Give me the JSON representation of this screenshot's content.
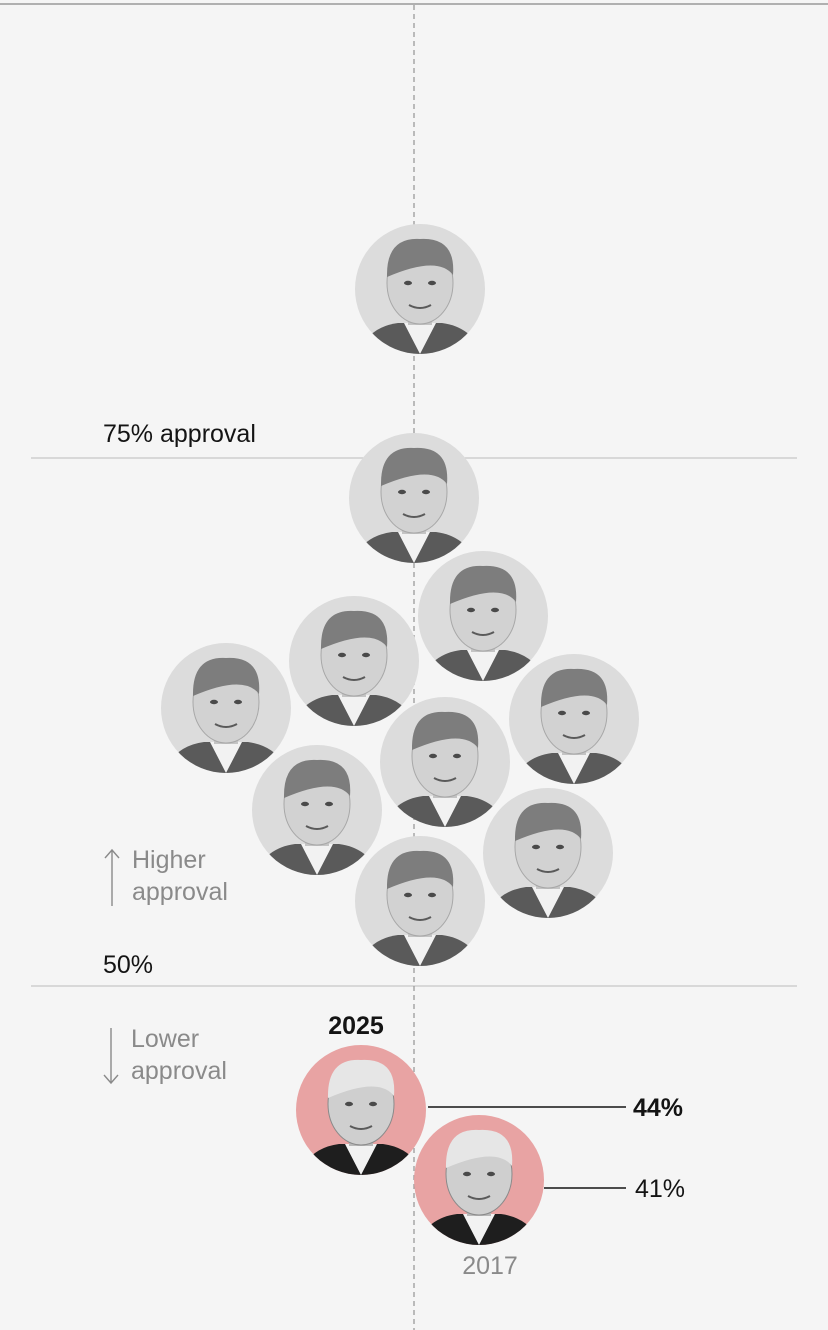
{
  "chart_data": {
    "type": "scatter",
    "description_free": true,
    "y_axis": {
      "gridlines": [
        {
          "value": 75,
          "label": "75% approval"
        },
        {
          "value": 50,
          "label": "50%"
        }
      ],
      "higher_label": [
        "Higher",
        "approval"
      ],
      "lower_label": [
        "Lower",
        "approval"
      ]
    },
    "points": [
      {
        "id": "kennedy",
        "highlight": false
      },
      {
        "id": "eisenhower",
        "highlight": false
      },
      {
        "id": "reagan",
        "highlight": false
      },
      {
        "id": "obama",
        "highlight": false
      },
      {
        "id": "carter",
        "highlight": false
      },
      {
        "id": "bush-jr",
        "highlight": false
      },
      {
        "id": "nixon",
        "highlight": false
      },
      {
        "id": "bush-sr",
        "highlight": false
      },
      {
        "id": "biden",
        "highlight": false
      },
      {
        "id": "clinton",
        "highlight": false
      },
      {
        "id": "trump-2025",
        "highlight": true,
        "value": 44,
        "value_label": "44%",
        "year_label": "2025",
        "bold": true
      },
      {
        "id": "trump-2017",
        "highlight": true,
        "value": 41,
        "value_label": "41%",
        "year_label": "2017",
        "bold": false
      }
    ],
    "colors": {
      "background": "#f5f5f5",
      "portrait_bg": "#dcdcdc",
      "highlight_bg": "#e8a3a3",
      "gridline": "#c8c8c8",
      "axis_dash": "#9a9a9a",
      "text_dark": "#141414",
      "text_muted": "#8a8a8a"
    }
  }
}
